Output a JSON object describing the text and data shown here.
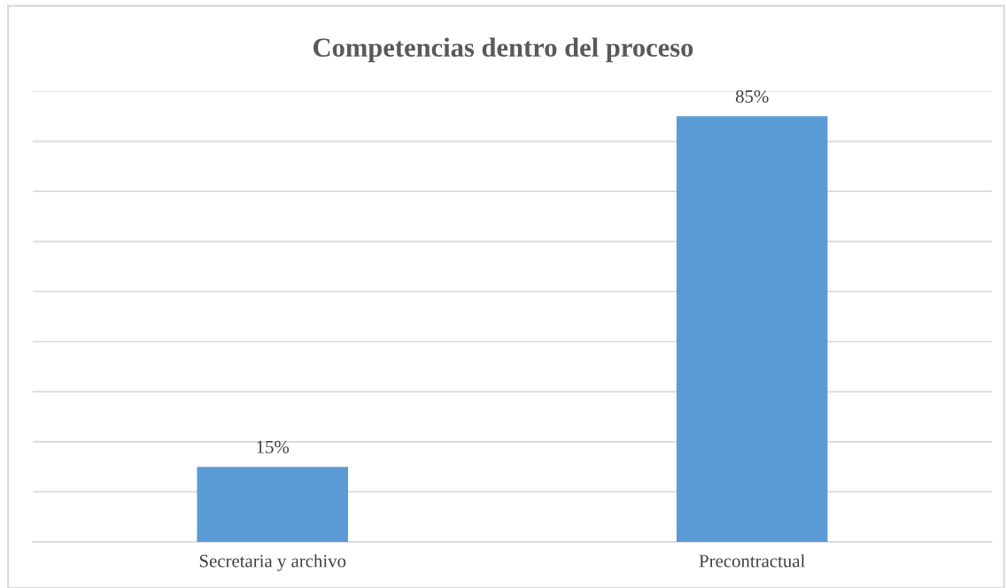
{
  "chart_data": {
    "type": "bar",
    "title": "Competencias dentro del proceso",
    "categories": [
      "Secretaria y archivo",
      "Precontractual"
    ],
    "values": [
      15,
      85
    ],
    "color": "#5b9bd5",
    "data_labels": true,
    "ylim": [
      0,
      90
    ],
    "yticks": [
      {
        "value": 0,
        "label": null
      },
      {
        "value": 10,
        "label": null
      },
      {
        "value": 20,
        "label": null
      },
      {
        "value": 30,
        "label": null
      },
      {
        "value": 40,
        "label": null
      },
      {
        "value": 50,
        "label": null
      },
      {
        "value": 60,
        "label": null
      },
      {
        "value": 70,
        "label": null
      },
      {
        "value": 80,
        "label": null
      },
      {
        "value": 90,
        "label": null
      }
    ],
    "value_labels": [
      "15%",
      "85%"
    ],
    "tick_labels": "x",
    "grid": "y",
    "legend": false
  }
}
